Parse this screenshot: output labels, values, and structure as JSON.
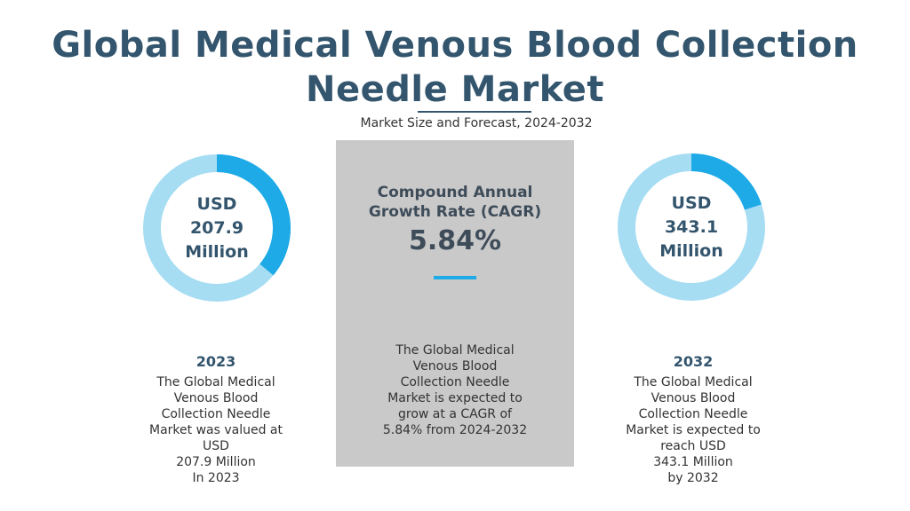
{
  "title_line1": "Global Medical Venous Blood Collection",
  "title_line2": "Needle Market",
  "subtitle": "Market Size and Forecast, 2024-2032",
  "colors": {
    "accent": "#1eaae7",
    "track": "#a6ddf3",
    "heading": "#33556d",
    "panel": "#c9c9c9"
  },
  "chart_data": {
    "type": "table",
    "title": "Global Medical Venous Blood Collection Needle Market",
    "unit": "USD Million",
    "values": [
      {
        "year": "2023",
        "value": 207.9
      },
      {
        "year": "2032",
        "value": 343.1
      }
    ],
    "cagr_percent": 5.84,
    "forecast_period": "2024-2032"
  },
  "left": {
    "donut_lines": [
      "USD",
      "207.9",
      "Million"
    ],
    "year": "2023",
    "desc_lines": [
      "The Global Medical",
      "Venous Blood",
      "Collection Needle",
      "Market was valued at",
      "USD",
      "207.9  Million",
      "In 2023"
    ]
  },
  "center": {
    "label_lines": [
      "Compound Annual",
      "Growth Rate (CAGR)"
    ],
    "value": "5.84%",
    "desc_lines": [
      "The Global Medical",
      "Venous Blood",
      "Collection Needle",
      "Market is expected to",
      "grow at a CAGR of",
      "5.84% from 2024-2032"
    ]
  },
  "right": {
    "donut_lines": [
      "USD",
      "343.1",
      "Million"
    ],
    "year": "2032",
    "desc_lines": [
      "The Global Medical",
      "Venous Blood",
      "Collection Needle",
      "Market is expected to",
      "reach USD",
      "343.1 Million",
      "by 2032"
    ]
  }
}
